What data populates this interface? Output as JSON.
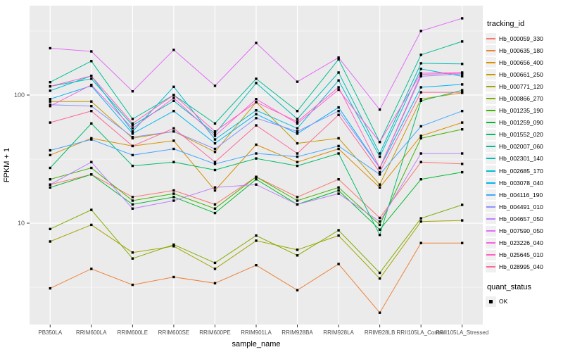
{
  "chart_data": {
    "type": "line",
    "title": "",
    "xlabel": "sample_name",
    "ylabel": "FPKM + 1",
    "y_scale": "log10",
    "y_ticks": [
      10,
      100
    ],
    "y_minor_ticks": [
      3.162,
      31.62,
      316.2
    ],
    "ylim_log": [
      1.64,
      500
    ],
    "grid": "on",
    "panel_bg": "#EBEBEB",
    "grid_color": "#FFFFFF",
    "tick_label_color": "#4D4D4D",
    "marker_color": "#000000",
    "marker_shape": "square",
    "categories": [
      "PB350LA",
      "RRIM600LA",
      "RRIM600LE",
      "RRIM600SE",
      "RRIM600PE",
      "RRIM901LA",
      "RRIM928BA",
      "RRIM928LA",
      "RRIM928LB",
      "RRII105LA_Control",
      "RRII105LA_Stressed"
    ],
    "legend": {
      "tracking_title": "tracking_id",
      "quant_title": "quant_status",
      "quant_items": [
        "OK"
      ],
      "position": "right"
    },
    "series": [
      {
        "name": "Hb_000059_330",
        "color": "#F8766D",
        "values": [
          20,
          24,
          16,
          18,
          14,
          23,
          16,
          22,
          11,
          30,
          29
        ]
      },
      {
        "name": "Hb_000635_180",
        "color": "#EC8239",
        "values": [
          3.1,
          4.4,
          3.3,
          3.8,
          3.4,
          4.7,
          3.0,
          4.8,
          2.0,
          7.0,
          7.0
        ]
      },
      {
        "name": "Hb_000656_400",
        "color": "#DB8E00",
        "values": [
          34,
          46,
          40,
          44,
          18,
          41,
          30,
          38,
          19,
          48,
          61
        ]
      },
      {
        "name": "Hb_000661_250",
        "color": "#C49A00",
        "values": [
          89,
          89,
          46,
          52,
          36,
          88,
          42,
          46,
          20,
          93,
          104
        ]
      },
      {
        "name": "Hb_000771_120",
        "color": "#A6A400",
        "values": [
          7.2,
          9.7,
          5.9,
          6.6,
          4.4,
          7.3,
          6.2,
          8.0,
          3.7,
          10.3,
          10.5
        ]
      },
      {
        "name": "Hb_000866_270",
        "color": "#7FAD00",
        "values": [
          9.0,
          12.7,
          5.3,
          6.8,
          4.9,
          8.0,
          5.6,
          8.8,
          4.1,
          10.9,
          13.9
        ]
      },
      {
        "name": "Hb_001235_190",
        "color": "#3FB400",
        "values": [
          22,
          27,
          15,
          17,
          13,
          23,
          15,
          19,
          9.7,
          46,
          54
        ]
      },
      {
        "name": "Hb_001259_090",
        "color": "#00B92D",
        "values": [
          19,
          24,
          14,
          16,
          12,
          22,
          14,
          18,
          8.9,
          22,
          25
        ]
      },
      {
        "name": "Hb_001552_020",
        "color": "#00BD68",
        "values": [
          27,
          60,
          28,
          30,
          26,
          32,
          28,
          35,
          8.1,
          90,
          109
        ]
      },
      {
        "name": "Hb_002007_060",
        "color": "#00BF92",
        "values": [
          126,
          184,
          65,
          100,
          60,
          134,
          75,
          190,
          43,
          206,
          262
        ]
      },
      {
        "name": "Hb_002301_140",
        "color": "#00BFB7",
        "values": [
          117,
          134,
          58,
          90,
          50,
          124,
          65,
          150,
          35,
          177,
          175
        ]
      },
      {
        "name": "Hb_002685_170",
        "color": "#00BCD9",
        "values": [
          108,
          141,
          52,
          116,
          45,
          76,
          55,
          130,
          33,
          160,
          140
        ]
      },
      {
        "name": "Hb_003078_040",
        "color": "#00B4F4",
        "values": [
          93,
          118,
          50,
          75,
          42,
          71,
          50,
          80,
          27,
          115,
          121
        ]
      },
      {
        "name": "Hb_004116_190",
        "color": "#47A6FF",
        "values": [
          37,
          45,
          34,
          38,
          29,
          35,
          33,
          40,
          24,
          57,
          75
        ]
      },
      {
        "name": "Hb_004491_010",
        "color": "#8F92FF",
        "values": [
          84,
          82,
          47,
          52,
          38,
          66,
          52,
          75,
          27,
          140,
          146
        ]
      },
      {
        "name": "Hb_004657_050",
        "color": "#BF80FF",
        "values": [
          20,
          30,
          13,
          15,
          19,
          20,
          14,
          17,
          10.3,
          35,
          35
        ]
      },
      {
        "name": "Hb_007590_050",
        "color": "#E26EF7",
        "values": [
          232,
          219,
          107,
          225,
          118,
          255,
          127,
          196,
          77,
          316,
          397
        ]
      },
      {
        "name": "Hb_023226_040",
        "color": "#F863E0",
        "values": [
          82,
          120,
          55,
          95,
          48,
          93,
          60,
          110,
          43,
          148,
          150
        ]
      },
      {
        "name": "Hb_025645_010",
        "color": "#FF62BF",
        "values": [
          117,
          141,
          60,
          100,
          52,
          88,
          62,
          115,
          27,
          145,
          148
        ]
      },
      {
        "name": "Hb_028995_040",
        "color": "#FF689B",
        "values": [
          61,
          75,
          40,
          55,
          30,
          58,
          35,
          70,
          25,
          105,
          105
        ]
      }
    ]
  }
}
